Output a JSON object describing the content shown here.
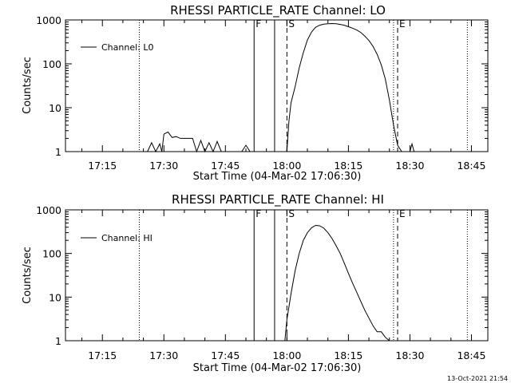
{
  "footer": {
    "timestamp": "13-Oct-2021 21:54"
  },
  "chart_data": [
    {
      "type": "line",
      "title": "RHESSI PARTICLE_RATE Channel: LO",
      "xlabel": "Start Time (04-Mar-02 17:06:30)",
      "ylabel": "Counts/sec",
      "yscale": "log",
      "xlim": [
        "17:06:30",
        "18:49:30"
      ],
      "ylim": [
        1,
        1000
      ],
      "xticks": [
        "17:15",
        "17:30",
        "17:45",
        "18:00",
        "18:15",
        "18:30",
        "18:45"
      ],
      "yticks": [
        "1",
        "10",
        "100",
        "1000"
      ],
      "legend": {
        "position": "top-left",
        "entries": [
          "Channel: L0"
        ]
      },
      "event_markers": [
        {
          "time": "17:24",
          "style": "dotted"
        },
        {
          "time": "17:52",
          "style": "solid",
          "label": "F"
        },
        {
          "time": "17:57",
          "style": "solid"
        },
        {
          "time": "18:00",
          "style": "dashed",
          "label": "S"
        },
        {
          "time": "18:26",
          "style": "dotted"
        },
        {
          "time": "18:27",
          "style": "dashed",
          "label": "E"
        },
        {
          "time": "18:44",
          "style": "dotted"
        }
      ],
      "series": [
        {
          "name": "Channel: L0",
          "segments": [
            [
              [
                "17:26",
                1
              ],
              [
                "17:27",
                1.6
              ],
              [
                "17:28",
                1
              ],
              [
                "17:29",
                1.5
              ],
              [
                "17:29.5",
                1
              ],
              [
                "17:30",
                2.5
              ],
              [
                "17:31",
                2.8
              ],
              [
                "17:32",
                2.1
              ],
              [
                "17:33",
                2.2
              ],
              [
                "17:34",
                2
              ],
              [
                "17:35",
                2
              ],
              [
                "17:36",
                2
              ],
              [
                "17:37",
                2
              ],
              [
                "17:38",
                1
              ],
              [
                "17:39",
                1.8
              ],
              [
                "17:40",
                1
              ],
              [
                "17:41",
                1.6
              ],
              [
                "17:42",
                1
              ],
              [
                "17:43",
                1.7
              ],
              [
                "17:44",
                1
              ]
            ],
            [
              [
                "17:49",
                1
              ],
              [
                "17:50",
                1.4
              ],
              [
                "17:51",
                1
              ]
            ],
            [
              [
                "18:00",
                1
              ],
              [
                "18:00.5",
                5
              ],
              [
                "18:01",
                13
              ],
              [
                "18:02",
                30
              ],
              [
                "18:03",
                80
              ],
              [
                "18:04",
                180
              ],
              [
                "18:05",
                350
              ],
              [
                "18:06",
                530
              ],
              [
                "18:07",
                680
              ],
              [
                "18:08",
                760
              ],
              [
                "18:09",
                800
              ],
              [
                "18:10",
                820
              ],
              [
                "18:11",
                830
              ],
              [
                "18:12",
                820
              ],
              [
                "18:13",
                790
              ],
              [
                "18:14",
                760
              ],
              [
                "18:15",
                700
              ],
              [
                "18:16",
                650
              ],
              [
                "18:17",
                590
              ],
              [
                "18:18",
                520
              ],
              [
                "18:19",
                430
              ],
              [
                "18:20",
                340
              ],
              [
                "18:21",
                250
              ],
              [
                "18:22",
                165
              ],
              [
                "18:23",
                95
              ],
              [
                "18:24",
                45
              ],
              [
                "18:25",
                15
              ],
              [
                "18:26",
                4
              ],
              [
                "18:27",
                1.4
              ],
              [
                "18:28",
                1
              ]
            ],
            [
              [
                "18:30",
                1
              ],
              [
                "18:30.5",
                1.5
              ],
              [
                "18:31",
                1
              ]
            ]
          ]
        }
      ]
    },
    {
      "type": "line",
      "title": "RHESSI PARTICLE_RATE Channel: HI",
      "xlabel": "Start Time (04-Mar-02 17:06:30)",
      "ylabel": "Counts/sec",
      "yscale": "log",
      "xlim": [
        "17:06:30",
        "18:49:30"
      ],
      "ylim": [
        1,
        1000
      ],
      "xticks": [
        "17:15",
        "17:30",
        "17:45",
        "18:00",
        "18:15",
        "18:30",
        "18:45"
      ],
      "yticks": [
        "1",
        "10",
        "100",
        "1000"
      ],
      "legend": {
        "position": "top-left",
        "entries": [
          "Channel: HI"
        ]
      },
      "event_markers": [
        {
          "time": "17:24",
          "style": "dotted"
        },
        {
          "time": "17:52",
          "style": "solid",
          "label": "F"
        },
        {
          "time": "17:57",
          "style": "solid"
        },
        {
          "time": "18:00",
          "style": "dashed",
          "label": "S"
        },
        {
          "time": "18:26",
          "style": "dotted"
        },
        {
          "time": "18:27",
          "style": "dashed",
          "label": "E"
        },
        {
          "time": "18:44",
          "style": "dotted"
        }
      ],
      "series": [
        {
          "name": "Channel: HI",
          "segments": [
            [
              [
                "17:59.5",
                1
              ],
              [
                "18:00",
                3
              ],
              [
                "18:01",
                12
              ],
              [
                "18:02",
                40
              ],
              [
                "18:03",
                100
              ],
              [
                "18:04",
                200
              ],
              [
                "18:05",
                300
              ],
              [
                "18:06",
                390
              ],
              [
                "18:07",
                440
              ],
              [
                "18:08",
                430
              ],
              [
                "18:09",
                380
              ],
              [
                "18:10",
                300
              ],
              [
                "18:11",
                220
              ],
              [
                "18:12",
                150
              ],
              [
                "18:13",
                100
              ],
              [
                "18:14",
                60
              ],
              [
                "18:15",
                35
              ],
              [
                "18:16",
                21
              ],
              [
                "18:17",
                13
              ],
              [
                "18:18",
                8
              ],
              [
                "18:19",
                5
              ],
              [
                "18:20",
                3.3
              ],
              [
                "18:21",
                2.2
              ],
              [
                "18:22",
                1.6
              ],
              [
                "18:23",
                1.6
              ],
              [
                "18:24",
                1.2
              ],
              [
                "18:25",
                1
              ]
            ]
          ]
        }
      ]
    }
  ]
}
